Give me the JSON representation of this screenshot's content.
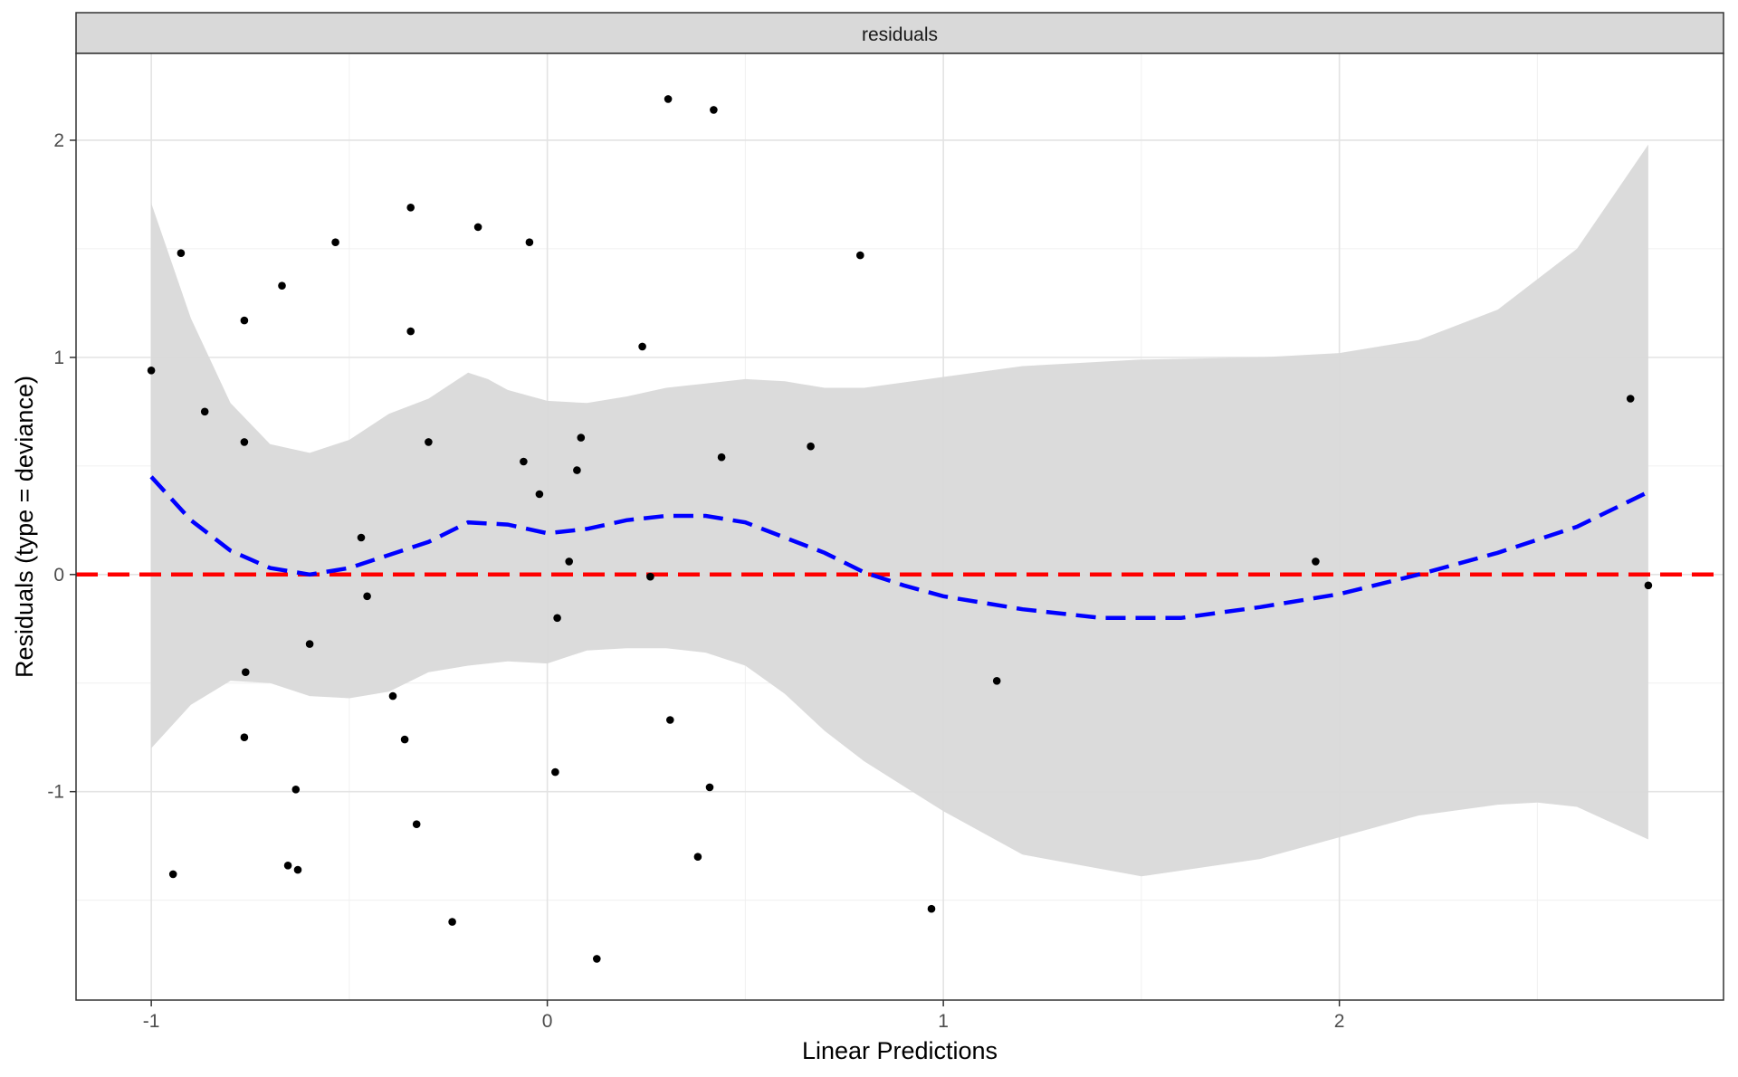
{
  "chart_data": {
    "type": "scatter",
    "facet_label": "residuals",
    "xlabel": "Linear Predictions",
    "ylabel": "Residuals (type = deviance)",
    "xlim": [
      -1.19,
      2.97
    ],
    "ylim": [
      -1.96,
      2.4
    ],
    "x_ticks": [
      {
        "value": -1,
        "label": "-1"
      },
      {
        "value": 0,
        "label": "0"
      },
      {
        "value": 1,
        "label": "1"
      },
      {
        "value": 2,
        "label": "2"
      }
    ],
    "y_ticks": [
      {
        "value": -1,
        "label": "-1"
      },
      {
        "value": 0,
        "label": "0"
      },
      {
        "value": 1,
        "label": "1"
      },
      {
        "value": 2,
        "label": "2"
      }
    ],
    "grid": true,
    "reference_line": {
      "y": 0,
      "color": "#ff0000",
      "style": "dashed"
    },
    "points": [
      {
        "x": -1.0,
        "y": 0.94
      },
      {
        "x": -0.925,
        "y": 1.48
      },
      {
        "x": -0.945,
        "y": -1.38
      },
      {
        "x": -0.865,
        "y": 0.75
      },
      {
        "x": -0.765,
        "y": 1.17
      },
      {
        "x": -0.765,
        "y": 0.61
      },
      {
        "x": -0.762,
        "y": -0.45
      },
      {
        "x": -0.765,
        "y": -0.75
      },
      {
        "x": -0.67,
        "y": 1.33
      },
      {
        "x": -0.655,
        "y": -1.34
      },
      {
        "x": -0.635,
        "y": -0.99
      },
      {
        "x": -0.63,
        "y": -1.36
      },
      {
        "x": -0.6,
        "y": -0.32
      },
      {
        "x": -0.535,
        "y": 1.53
      },
      {
        "x": -0.47,
        "y": 0.17
      },
      {
        "x": -0.455,
        "y": -0.1
      },
      {
        "x": -0.39,
        "y": -0.56
      },
      {
        "x": -0.36,
        "y": -0.76
      },
      {
        "x": -0.345,
        "y": 1.69
      },
      {
        "x": -0.345,
        "y": 1.12
      },
      {
        "x": -0.33,
        "y": -1.15
      },
      {
        "x": -0.3,
        "y": 0.61
      },
      {
        "x": -0.24,
        "y": -1.6
      },
      {
        "x": -0.175,
        "y": 1.6
      },
      {
        "x": -0.06,
        "y": 0.52
      },
      {
        "x": -0.045,
        "y": 1.53
      },
      {
        "x": -0.02,
        "y": 0.37
      },
      {
        "x": 0.02,
        "y": -0.91
      },
      {
        "x": 0.025,
        "y": -0.2
      },
      {
        "x": 0.055,
        "y": 0.06
      },
      {
        "x": 0.075,
        "y": 0.48
      },
      {
        "x": 0.085,
        "y": 0.63
      },
      {
        "x": 0.125,
        "y": -1.77
      },
      {
        "x": 0.24,
        "y": 1.05
      },
      {
        "x": 0.26,
        "y": -0.01
      },
      {
        "x": 0.305,
        "y": 2.19
      },
      {
        "x": 0.31,
        "y": -0.67
      },
      {
        "x": 0.38,
        "y": -1.3
      },
      {
        "x": 0.41,
        "y": -0.98
      },
      {
        "x": 0.42,
        "y": 2.14
      },
      {
        "x": 0.44,
        "y": 0.54
      },
      {
        "x": 0.665,
        "y": 0.59
      },
      {
        "x": 0.79,
        "y": 1.47
      },
      {
        "x": 0.97,
        "y": -1.54
      },
      {
        "x": 1.135,
        "y": -0.49
      },
      {
        "x": 1.94,
        "y": 0.06
      },
      {
        "x": 2.735,
        "y": 0.81
      },
      {
        "x": 2.78,
        "y": -0.05
      }
    ],
    "smooth_line": {
      "color": "#0000ff",
      "style": "dashed",
      "points": [
        [
          -1.0,
          0.45
        ],
        [
          -0.9,
          0.25
        ],
        [
          -0.8,
          0.11
        ],
        [
          -0.7,
          0.03
        ],
        [
          -0.6,
          0.0
        ],
        [
          -0.5,
          0.03
        ],
        [
          -0.4,
          0.09
        ],
        [
          -0.3,
          0.15
        ],
        [
          -0.2,
          0.24
        ],
        [
          -0.1,
          0.23
        ],
        [
          0.0,
          0.19
        ],
        [
          0.1,
          0.21
        ],
        [
          0.2,
          0.25
        ],
        [
          0.3,
          0.27
        ],
        [
          0.4,
          0.27
        ],
        [
          0.5,
          0.24
        ],
        [
          0.6,
          0.17
        ],
        [
          0.7,
          0.1
        ],
        [
          0.8,
          0.01
        ],
        [
          0.9,
          -0.05
        ],
        [
          1.0,
          -0.1
        ],
        [
          1.2,
          -0.16
        ],
        [
          1.4,
          -0.2
        ],
        [
          1.6,
          -0.2
        ],
        [
          1.8,
          -0.15
        ],
        [
          2.0,
          -0.09
        ],
        [
          2.2,
          0.0
        ],
        [
          2.4,
          0.1
        ],
        [
          2.6,
          0.22
        ],
        [
          2.78,
          0.38
        ]
      ]
    },
    "confidence_band": {
      "color": "#d9d9d9",
      "upper": [
        [
          -1.0,
          1.71
        ],
        [
          -0.9,
          1.18
        ],
        [
          -0.8,
          0.79
        ],
        [
          -0.7,
          0.6
        ],
        [
          -0.6,
          0.56
        ],
        [
          -0.5,
          0.62
        ],
        [
          -0.4,
          0.74
        ],
        [
          -0.3,
          0.81
        ],
        [
          -0.2,
          0.93
        ],
        [
          -0.15,
          0.9
        ],
        [
          -0.1,
          0.85
        ],
        [
          0.0,
          0.8
        ],
        [
          0.1,
          0.79
        ],
        [
          0.2,
          0.82
        ],
        [
          0.3,
          0.86
        ],
        [
          0.4,
          0.88
        ],
        [
          0.5,
          0.9
        ],
        [
          0.6,
          0.89
        ],
        [
          0.7,
          0.86
        ],
        [
          0.8,
          0.86
        ],
        [
          1.0,
          0.91
        ],
        [
          1.2,
          0.96
        ],
        [
          1.5,
          0.99
        ],
        [
          1.8,
          1.0
        ],
        [
          2.0,
          1.02
        ],
        [
          2.2,
          1.08
        ],
        [
          2.4,
          1.22
        ],
        [
          2.6,
          1.5
        ],
        [
          2.78,
          1.98
        ]
      ],
      "lower": [
        [
          -1.0,
          -0.8
        ],
        [
          -0.9,
          -0.6
        ],
        [
          -0.8,
          -0.49
        ],
        [
          -0.7,
          -0.5
        ],
        [
          -0.6,
          -0.56
        ],
        [
          -0.5,
          -0.57
        ],
        [
          -0.4,
          -0.54
        ],
        [
          -0.3,
          -0.45
        ],
        [
          -0.2,
          -0.42
        ],
        [
          -0.1,
          -0.4
        ],
        [
          0.0,
          -0.41
        ],
        [
          0.1,
          -0.35
        ],
        [
          0.2,
          -0.34
        ],
        [
          0.3,
          -0.34
        ],
        [
          0.4,
          -0.36
        ],
        [
          0.5,
          -0.42
        ],
        [
          0.6,
          -0.55
        ],
        [
          0.7,
          -0.72
        ],
        [
          0.8,
          -0.86
        ],
        [
          1.0,
          -1.09
        ],
        [
          1.2,
          -1.29
        ],
        [
          1.5,
          -1.39
        ],
        [
          1.8,
          -1.31
        ],
        [
          2.0,
          -1.21
        ],
        [
          2.2,
          -1.11
        ],
        [
          2.4,
          -1.06
        ],
        [
          2.5,
          -1.05
        ],
        [
          2.6,
          -1.07
        ],
        [
          2.78,
          -1.22
        ]
      ]
    }
  }
}
